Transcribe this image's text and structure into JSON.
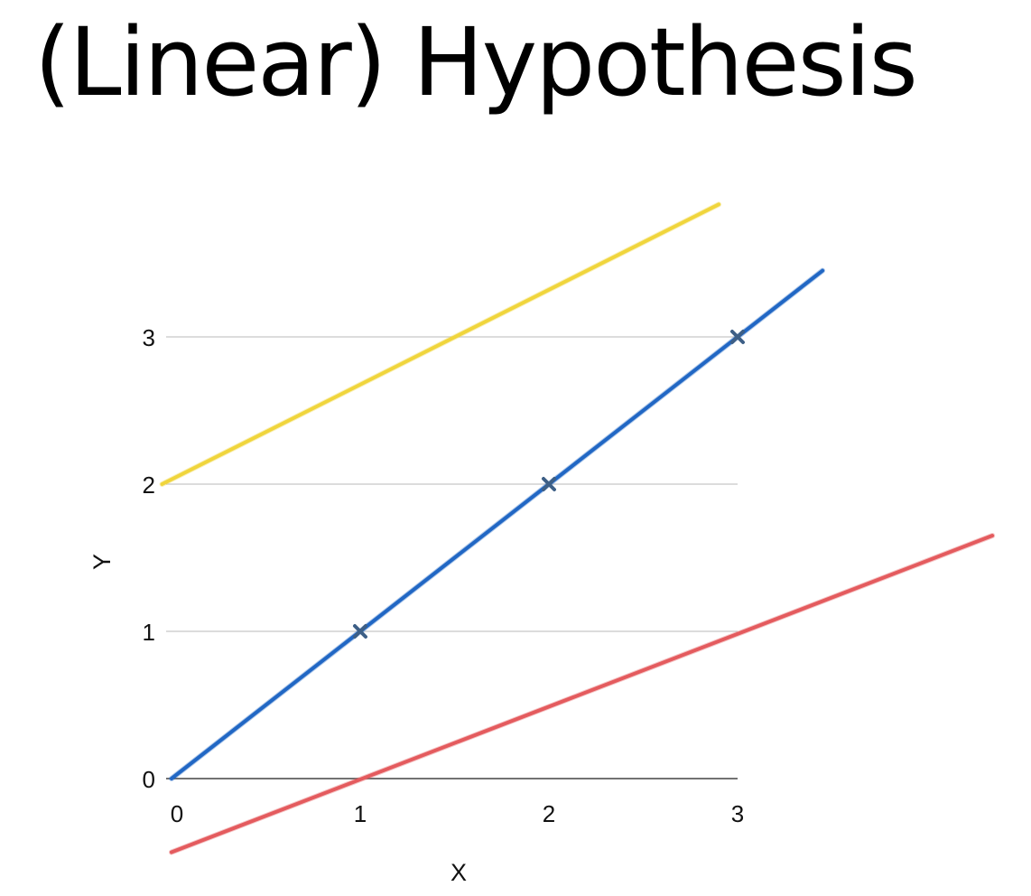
{
  "slide": {
    "title": "(Linear) Hypothesis"
  },
  "chart_data": {
    "type": "line",
    "title": "(Linear) Hypothesis",
    "xlabel": "X",
    "ylabel": "Y",
    "x_ticks": [
      0,
      1,
      2,
      3
    ],
    "y_ticks": [
      0,
      1,
      2,
      3
    ],
    "xlim": [
      0,
      3
    ],
    "ylim": [
      0,
      3
    ],
    "grid": "horizontal",
    "legend": "none",
    "points": [
      {
        "x": 1,
        "y": 1
      },
      {
        "x": 2,
        "y": 2
      },
      {
        "x": 3,
        "y": 3
      }
    ],
    "point_color": "#3d5f86",
    "series": [
      {
        "color": "#f0d53c",
        "x": [
          -0.05,
          2.9
        ],
        "y": [
          2.0,
          3.9
        ]
      },
      {
        "color": "#2167c4",
        "x": [
          0,
          3.45
        ],
        "y": [
          0,
          3.45
        ]
      },
      {
        "color": "#e45b5e",
        "x": [
          0,
          4.35
        ],
        "y": [
          -0.5,
          1.65
        ]
      }
    ]
  }
}
